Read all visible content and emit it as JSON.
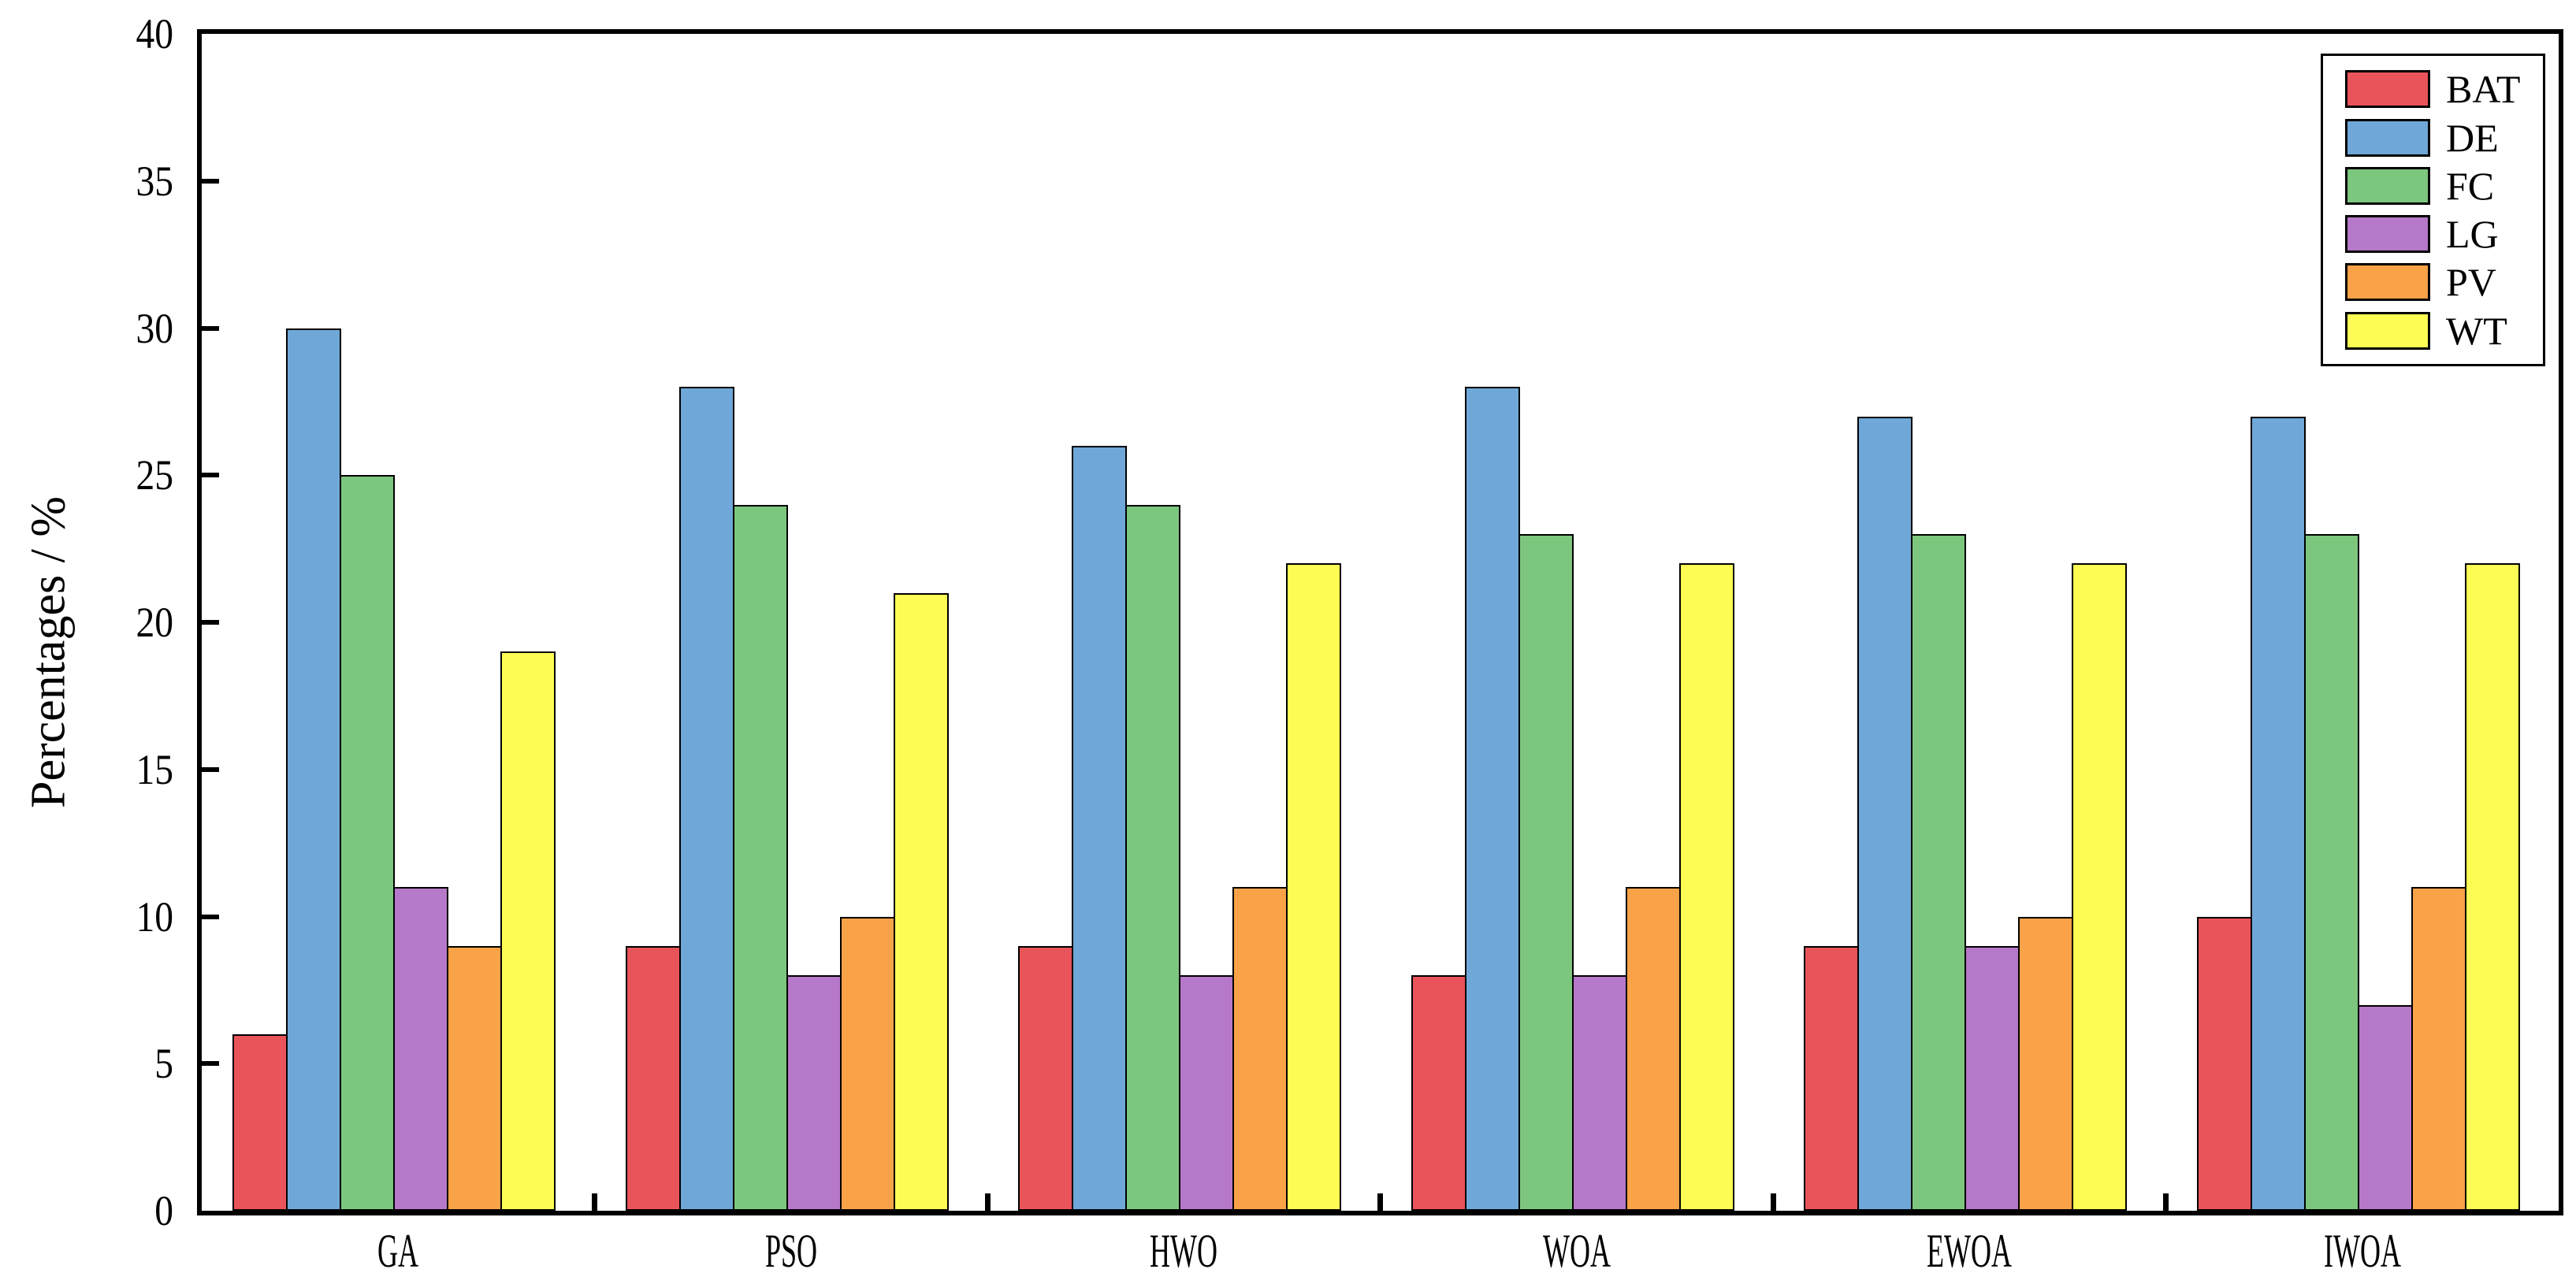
{
  "chart_data": {
    "type": "bar",
    "title": "",
    "xlabel": "",
    "ylabel": "Percentages / %",
    "ylim": [
      0,
      40
    ],
    "yticks": [
      0,
      5,
      10,
      15,
      20,
      25,
      30,
      35,
      40
    ],
    "grid": false,
    "legend_position": "top-right",
    "bar_edge_color": "#000000",
    "categories": [
      "GA",
      "PSO",
      "HWO",
      "WOA",
      "EWOA",
      "IWOA"
    ],
    "series": [
      {
        "name": "BAT",
        "color": "#E8545A",
        "values": [
          6,
          9,
          9,
          8,
          9,
          10
        ]
      },
      {
        "name": "DE",
        "color": "#6FA8D8",
        "values": [
          30,
          28,
          26,
          28,
          27,
          27
        ]
      },
      {
        "name": "FC",
        "color": "#7DC67E",
        "values": [
          25,
          24,
          24,
          23,
          23,
          23
        ]
      },
      {
        "name": "LG",
        "color": "#B678C8",
        "values": [
          11,
          8,
          8,
          8,
          9,
          7
        ]
      },
      {
        "name": "PV",
        "color": "#F9A247",
        "values": [
          9,
          10,
          11,
          11,
          10,
          11
        ]
      },
      {
        "name": "WT",
        "color": "#FCFC55",
        "values": [
          19,
          21,
          22,
          22,
          22,
          22
        ]
      }
    ]
  }
}
